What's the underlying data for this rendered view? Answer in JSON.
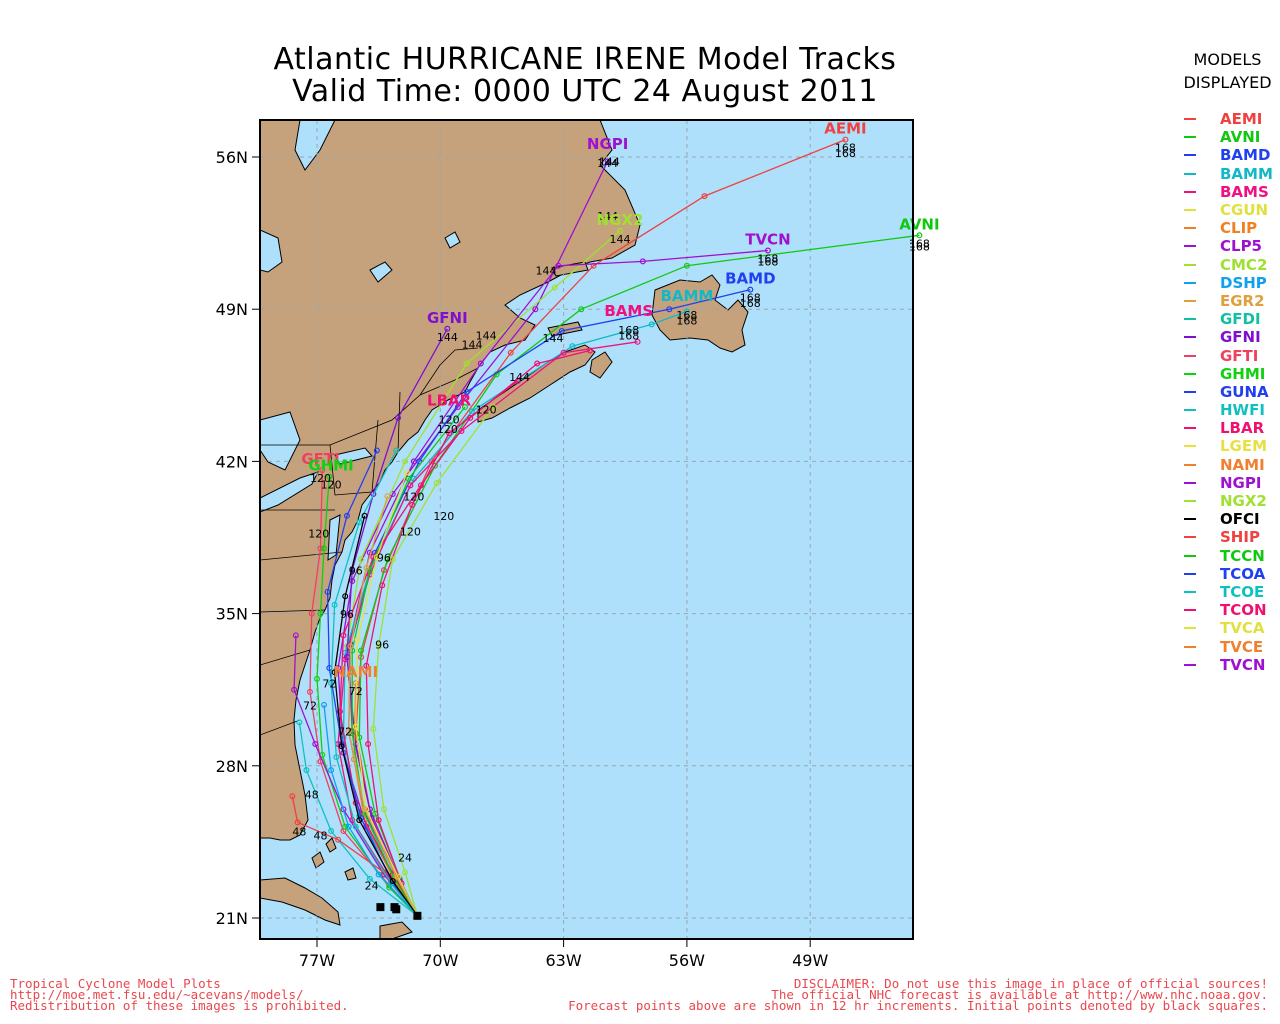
{
  "title": {
    "line1": "Atlantic HURRICANE IRENE Model Tracks",
    "line2": "Valid Time: 0000 UTC 24 August 2011"
  },
  "axes": {
    "lat_labels": [
      "56N",
      "49N",
      "42N",
      "35N",
      "28N",
      "21N"
    ],
    "lon_labels": [
      "77W",
      "70W",
      "63W",
      "56W",
      "49W"
    ]
  },
  "legend": {
    "header1": "MODELS",
    "header2": "DISPLAYED",
    "items": [
      {
        "name": "AEMI",
        "color": "#f04040"
      },
      {
        "name": "AVNI",
        "color": "#10c810"
      },
      {
        "name": "BAMD",
        "color": "#2040f0"
      },
      {
        "name": "BAMM",
        "color": "#10b8c8"
      },
      {
        "name": "BAMS",
        "color": "#f01080"
      },
      {
        "name": "CGUN",
        "color": "#e0e040"
      },
      {
        "name": "CLIP",
        "color": "#f08020"
      },
      {
        "name": "CLP5",
        "color": "#a010d0"
      },
      {
        "name": "CMC2",
        "color": "#a0e030"
      },
      {
        "name": "DSHP",
        "color": "#10a0f0"
      },
      {
        "name": "EGR2",
        "color": "#e0a040"
      },
      {
        "name": "GFDI",
        "color": "#10c0a0"
      },
      {
        "name": "GFNI",
        "color": "#8010d0"
      },
      {
        "name": "GFTI",
        "color": "#f04060"
      },
      {
        "name": "GHMI",
        "color": "#10d010"
      },
      {
        "name": "GUNA",
        "color": "#2040f0"
      },
      {
        "name": "HWFI",
        "color": "#10c0c0"
      },
      {
        "name": "LBAR",
        "color": "#f01070"
      },
      {
        "name": "LGEM",
        "color": "#e8e040"
      },
      {
        "name": "NAMI",
        "color": "#f08030"
      },
      {
        "name": "NGPI",
        "color": "#a010d0"
      },
      {
        "name": "NGX2",
        "color": "#a0e030"
      },
      {
        "name": "OFCI",
        "color": "#000000"
      },
      {
        "name": "SHIP",
        "color": "#f04040"
      },
      {
        "name": "TCCN",
        "color": "#10c810"
      },
      {
        "name": "TCOA",
        "color": "#2040f0"
      },
      {
        "name": "TCOE",
        "color": "#10c0c0"
      },
      {
        "name": "TCON",
        "color": "#f01070"
      },
      {
        "name": "TVCA",
        "color": "#e0e040"
      },
      {
        "name": "TVCE",
        "color": "#f08030"
      },
      {
        "name": "TVCN",
        "color": "#a010d0"
      }
    ]
  },
  "map_labels": [
    {
      "name": "AEMI",
      "color": "#f04040",
      "lon": -47,
      "lat": 56.8,
      "hour": "168"
    },
    {
      "name": "NGPI",
      "color": "#a010d0",
      "lon": -60.5,
      "lat": 56.1,
      "hour": "144"
    },
    {
      "name": "NGX2",
      "color": "#a0e030",
      "lon": -59.8,
      "lat": 52.6,
      "hour": "144"
    },
    {
      "name": "TVCN",
      "color": "#a010d0",
      "lon": -51.4,
      "lat": 51.7,
      "hour": "168"
    },
    {
      "name": "AVNI",
      "color": "#10c810",
      "lon": -42.8,
      "lat": 52.4,
      "hour": "168"
    },
    {
      "name": "BAMD",
      "color": "#2040f0",
      "lon": -52.4,
      "lat": 49.9,
      "hour": "168"
    },
    {
      "name": "BAMM",
      "color": "#10b8c8",
      "lon": -56,
      "lat": 49.1,
      "hour": "168"
    },
    {
      "name": "BAMS",
      "color": "#f01080",
      "lon": -59.3,
      "lat": 48.4,
      "hour": "168"
    },
    {
      "name": "GFNI",
      "color": "#8010d0",
      "lon": -69.6,
      "lat": 48.1,
      "hour": "144"
    },
    {
      "name": "LBAR",
      "color": "#f01070",
      "lon": -69.5,
      "lat": 44.3,
      "hour": "120"
    },
    {
      "name": "GFTI",
      "color": "#f04060",
      "lon": -76.8,
      "lat": 41.6,
      "hour": "120"
    },
    {
      "name": "GHMI",
      "color": "#10d010",
      "lon": -76.2,
      "lat": 41.3,
      "hour": "120"
    },
    {
      "name": "NAMI",
      "color": "#f08030",
      "lon": -74.8,
      "lat": 31.8,
      "hour": "72"
    }
  ],
  "hour_labels": [
    "24",
    "48",
    "72",
    "96",
    "120",
    "144",
    "168"
  ],
  "footer": {
    "left1": "Tropical Cyclone Model Plots",
    "left2": "http://moe.met.fsu.edu/~acevans/models/",
    "left3": "Redistribution of these images is prohibited.",
    "right1": "DISCLAIMER: Do not use this image in place of official sources!",
    "right2": "The official NHC forecast is available at http://www.nhc.noaa.gov.",
    "right3": "Forecast points above are shown in 12 hr increments. Initial points denoted by black squares."
  }
}
